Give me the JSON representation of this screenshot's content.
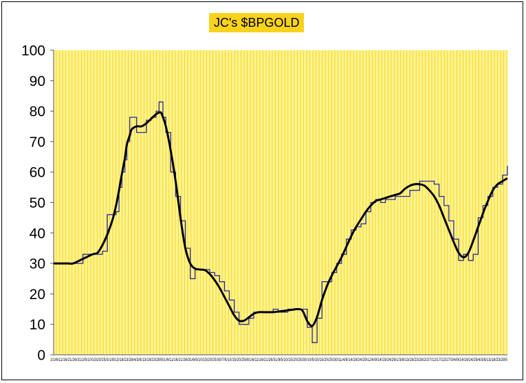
{
  "chart_data": {
    "type": "line",
    "title": "JC's $BPGOLD",
    "xlabel": "",
    "ylabel": "",
    "ylim": [
      0,
      100
    ],
    "yticks": [
      0,
      10,
      20,
      30,
      40,
      50,
      60,
      70,
      80,
      90,
      100
    ],
    "grid": "vertical lines only",
    "legend": "none",
    "x_tick_text": "1/1/6/11/16/21/26/31/2/5/10/15/20/25/3/1/8/13/18/23/28/4/3/8/13/18/23/28/5/1/6/11/16/21/26/31/6/5/10/15/20/25/30/7/5/10/15/20/25/8/1/6/11/16/21/26/31/9/5/10/15/20/25/30/10/5/10/15/20/25/30/11/4/9/14/19/24/29/12/4/9/14/19/24/29/1/3/8/13/18/23/28/2/2/7/12/17/22/27/3/4/9/14/19/24/29/4/3/8/13/18/23/28/5",
    "colors": {
      "plot_background": "#fef48a",
      "grid_lines": "#f2cc25",
      "raw_series": "#2a2a9a",
      "smoothed_series": "#000000",
      "title_background": "#f9d21c"
    },
    "x": [
      0,
      15,
      20,
      30,
      40,
      45,
      50,
      55,
      60,
      64,
      67,
      70,
      73,
      75,
      78,
      80,
      85,
      90,
      95,
      100,
      105,
      108,
      110,
      112,
      115,
      120,
      125,
      130,
      135,
      140,
      145,
      150,
      155,
      160,
      165,
      170,
      175,
      180,
      185,
      190,
      195,
      200,
      205,
      210,
      215,
      220,
      225,
      230,
      235,
      240,
      245,
      250,
      255,
      260,
      265,
      270,
      275,
      280,
      285,
      290,
      295,
      300,
      305,
      310,
      315,
      320,
      325,
      330,
      335,
      340,
      345,
      350,
      355,
      360,
      365,
      370,
      375,
      380,
      385,
      390,
      395,
      400,
      405,
      410,
      415,
      420,
      425,
      430,
      435,
      440,
      445,
      450,
      455,
      460,
      465
    ],
    "series": [
      {
        "values": [
          30,
          30,
          30,
          33,
          33,
          33,
          34,
          46,
          46,
          47,
          55,
          60,
          64,
          70,
          78,
          78,
          73,
          73,
          77,
          78,
          80,
          83,
          83,
          78,
          73,
          60,
          52,
          44,
          35,
          25,
          28,
          28,
          28,
          27,
          26,
          24,
          21,
          18,
          14,
          10,
          10,
          12,
          14,
          14,
          14,
          14,
          15,
          14,
          14,
          15,
          15,
          15,
          15,
          9,
          4,
          12,
          24,
          24,
          27,
          30,
          33,
          38,
          41,
          42,
          43,
          47,
          50,
          51,
          50,
          51,
          51,
          52,
          52,
          52,
          54,
          54,
          57,
          57,
          57,
          56,
          52,
          49,
          44,
          38,
          31,
          33,
          31,
          33,
          45,
          49,
          52,
          55,
          56,
          59,
          62
        ]
      },
      {
        "values": [
          30,
          30,
          30,
          31.5,
          33,
          33.5,
          36,
          39.5,
          44,
          49,
          54,
          59.5,
          64.5,
          69,
          72,
          74,
          75,
          75,
          76,
          77.5,
          79,
          79.5,
          79.5,
          78,
          75,
          67,
          57,
          45,
          35,
          30,
          28.3,
          28,
          27.8,
          26.5,
          24.5,
          22,
          19,
          16,
          13,
          11.2,
          11.2,
          12.3,
          13.5,
          14,
          14,
          14,
          14,
          14.2,
          14.4,
          14.6,
          14.8,
          15,
          14.5,
          11,
          9.5,
          12.5,
          18,
          22.5,
          26,
          29,
          32,
          35.5,
          39,
          42,
          44.5,
          47,
          49,
          50.5,
          51,
          51.5,
          52,
          52.5,
          53,
          54.5,
          55.5,
          56,
          56,
          55.5,
          54,
          52,
          49,
          45,
          41,
          37,
          33.5,
          32,
          33.5,
          37.5,
          42,
          46.5,
          50.5,
          54,
          56,
          57,
          58
        ]
      }
    ]
  }
}
